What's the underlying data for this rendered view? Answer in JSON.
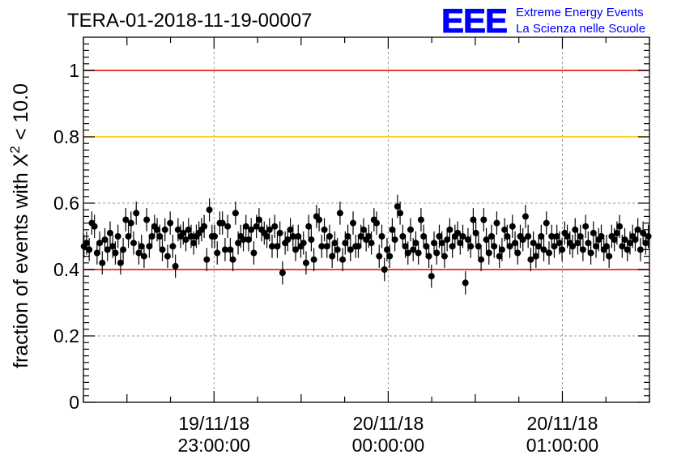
{
  "header": {
    "run_title": "TERA-01-2018-11-19-00007",
    "logo_mark": "EEE",
    "logo_line1": "Extreme Energy Events",
    "logo_line2": "La Scienza nelle Scuole"
  },
  "chart_data": {
    "type": "scatter",
    "title": "TERA-01-2018-11-19-00007",
    "xlabel": "",
    "ylabel_text": "fraction of events with X",
    "ylabel_sup": "2",
    "ylabel_tail": " < 10.0",
    "ylim": [
      0,
      1.1
    ],
    "xlim": [
      "2018-11-19 22:15:00",
      "2018-11-20 01:30:00"
    ],
    "grid": true,
    "y_ticks": [
      {
        "value": 0,
        "label": "0"
      },
      {
        "value": 0.2,
        "label": "0.2"
      },
      {
        "value": 0.4,
        "label": "0.4"
      },
      {
        "value": 0.6,
        "label": "0.6"
      },
      {
        "value": 0.8,
        "label": "0.8"
      },
      {
        "value": 1,
        "label": "1"
      }
    ],
    "x_ticks": [
      {
        "time": "2018-11-19 23:00:00",
        "date": "19/11/18",
        "clock": "23:00:00"
      },
      {
        "time": "2018-11-20 00:00:00",
        "date": "20/11/18",
        "clock": "00:00:00"
      },
      {
        "time": "2018-11-20 01:00:00",
        "date": "20/11/18",
        "clock": "01:00:00"
      }
    ],
    "reference_lines": [
      {
        "y": 1.0,
        "color": "#e8201c"
      },
      {
        "y": 0.8,
        "color": "#ffcc00"
      },
      {
        "y": 0.4,
        "color": "#e8201c"
      }
    ],
    "series": [
      {
        "marker": "circle",
        "color": "#000000",
        "y_error": 0.035,
        "x_start": "2018-11-19 22:15:12",
        "x_step_seconds": 54,
        "y": [
          0.47,
          0.48,
          0.46,
          0.54,
          0.53,
          0.45,
          0.48,
          0.42,
          0.49,
          0.46,
          0.51,
          0.47,
          0.45,
          0.5,
          0.42,
          0.46,
          0.55,
          0.5,
          0.54,
          0.48,
          0.57,
          0.45,
          0.47,
          0.44,
          0.55,
          0.47,
          0.5,
          0.53,
          0.52,
          0.5,
          0.46,
          0.52,
          0.44,
          0.54,
          0.47,
          0.41,
          0.52,
          0.5,
          0.51,
          0.49,
          0.52,
          0.5,
          0.48,
          0.5,
          0.51,
          0.52,
          0.53,
          0.43,
          0.58,
          0.5,
          0.5,
          0.45,
          0.54,
          0.54,
          0.46,
          0.53,
          0.46,
          0.43,
          0.57,
          0.48,
          0.5,
          0.49,
          0.53,
          0.49,
          0.52,
          0.45,
          0.53,
          0.55,
          0.52,
          0.51,
          0.5,
          0.52,
          0.47,
          0.53,
          0.47,
          0.51,
          0.39,
          0.48,
          0.49,
          0.52,
          0.5,
          0.46,
          0.5,
          0.47,
          0.48,
          0.42,
          0.53,
          0.49,
          0.43,
          0.56,
          0.55,
          0.47,
          0.52,
          0.47,
          0.5,
          0.44,
          0.48,
          0.46,
          0.57,
          0.43,
          0.48,
          0.5,
          0.46,
          0.54,
          0.47,
          0.47,
          0.5,
          0.52,
          0.49,
          0.5,
          0.48,
          0.55,
          0.54,
          0.44,
          0.5,
          0.4,
          0.46,
          0.44,
          0.52,
          0.49,
          0.59,
          0.57,
          0.5,
          0.47,
          0.45,
          0.52,
          0.46,
          0.48,
          0.45,
          0.55,
          0.5,
          0.47,
          0.44,
          0.38,
          0.48,
          0.45,
          0.5,
          0.48,
          0.44,
          0.49,
          0.52,
          0.47,
          0.5,
          0.51,
          0.48,
          0.5,
          0.36,
          0.49,
          0.47,
          0.55,
          0.51,
          0.47,
          0.43,
          0.55,
          0.49,
          0.45,
          0.5,
          0.47,
          0.54,
          0.44,
          0.46,
          0.52,
          0.5,
          0.47,
          0.53,
          0.48,
          0.45,
          0.5,
          0.49,
          0.56,
          0.5,
          0.43,
          0.48,
          0.44,
          0.47,
          0.5,
          0.46,
          0.54,
          0.45,
          0.5,
          0.47,
          0.5,
          0.48,
          0.46,
          0.51,
          0.5,
          0.48,
          0.47,
          0.52,
          0.48,
          0.5,
          0.46,
          0.53,
          0.48,
          0.45,
          0.51,
          0.47,
          0.49,
          0.5,
          0.46,
          0.47,
          0.44,
          0.5,
          0.49,
          0.51,
          0.53,
          0.47,
          0.49,
          0.46,
          0.48,
          0.5,
          0.49,
          0.52,
          0.46,
          0.51,
          0.48,
          0.5,
          0.53
        ]
      }
    ]
  }
}
